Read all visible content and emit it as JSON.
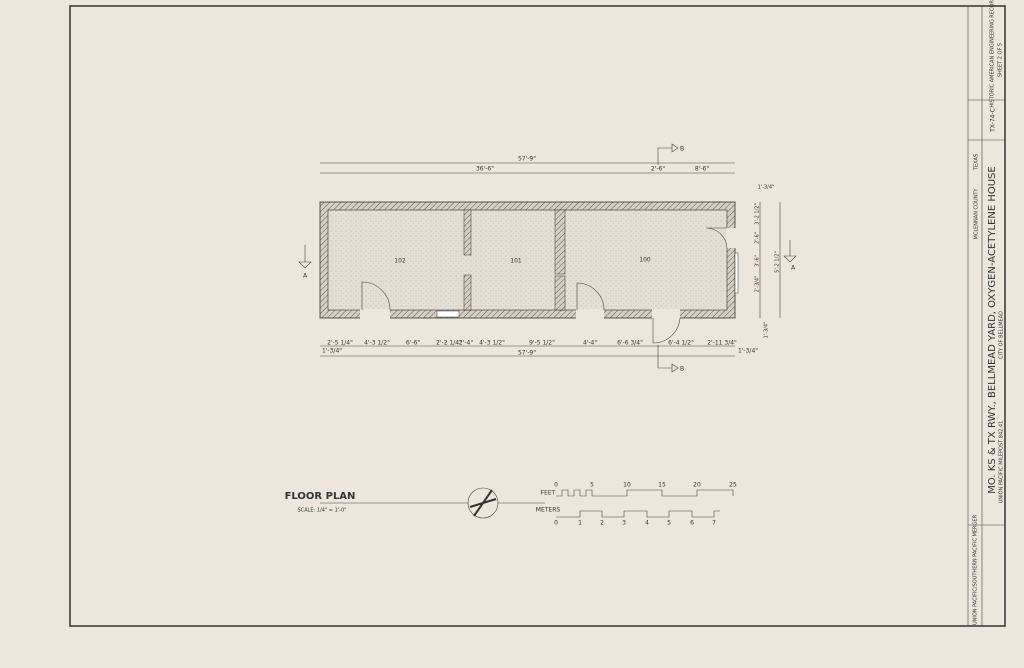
{
  "drawing": {
    "title": "FLOOR PLAN",
    "scale": "SCALE: 1/4\" = 1'-0\"",
    "rooms": [
      "102",
      "101",
      "100"
    ],
    "section_markers": [
      "A",
      "A",
      "B",
      "B"
    ],
    "top_dimensions": [
      "57'-9\"",
      "36'-6\"",
      "2'-6\"",
      "8'-6\""
    ],
    "bottom_dimensions": [
      "2'-5 1/4\"",
      "4'-3 1/2\"",
      "6'-6\"",
      "2'-2 1/4\"",
      "2'-4\"",
      "4'-3 1/2\"",
      "9'-5 1/2\"",
      "4'-4\"",
      "6'-6 3/4\"",
      "6'-4 1/2\"",
      "2'-11 3/4\"",
      "1'-3/4\"",
      "57'-9\"",
      "1'-3/4\""
    ],
    "right_dimensions": [
      "1'-3/4\"",
      "3'-2 1/2\"",
      "2'-6\"",
      "3'-6\"",
      "2'-3/4\"",
      "5'-2 1/2\"",
      "1'-3/4\""
    ],
    "feet_label": "FEET",
    "feet_ticks": [
      "0",
      "5",
      "10",
      "15",
      "20",
      "25"
    ],
    "meters_label": "METERS",
    "meter_ticks": [
      "0",
      "1",
      "2",
      "3",
      "4",
      "5",
      "6",
      "7"
    ]
  },
  "title_block": {
    "project": "MO. KS & TX RWY., BELLMEAD YARD, OXYGEN-ACETYLENE HOUSE",
    "location": "UNION PACIFIC MILEPOST 842.41",
    "city": "CITY OF BELLMEAD",
    "county": "MCLENNAN COUNTY",
    "state": "TEXAS",
    "agency": "HISTORIC AMERICAN ENGINEERING RECORD",
    "survey_number": "TX-74-C",
    "sheet": "SHEET 2 OF 5",
    "sponsor": "UNION PACIFIC/SOUTHERN PACIFIC MERGER"
  }
}
